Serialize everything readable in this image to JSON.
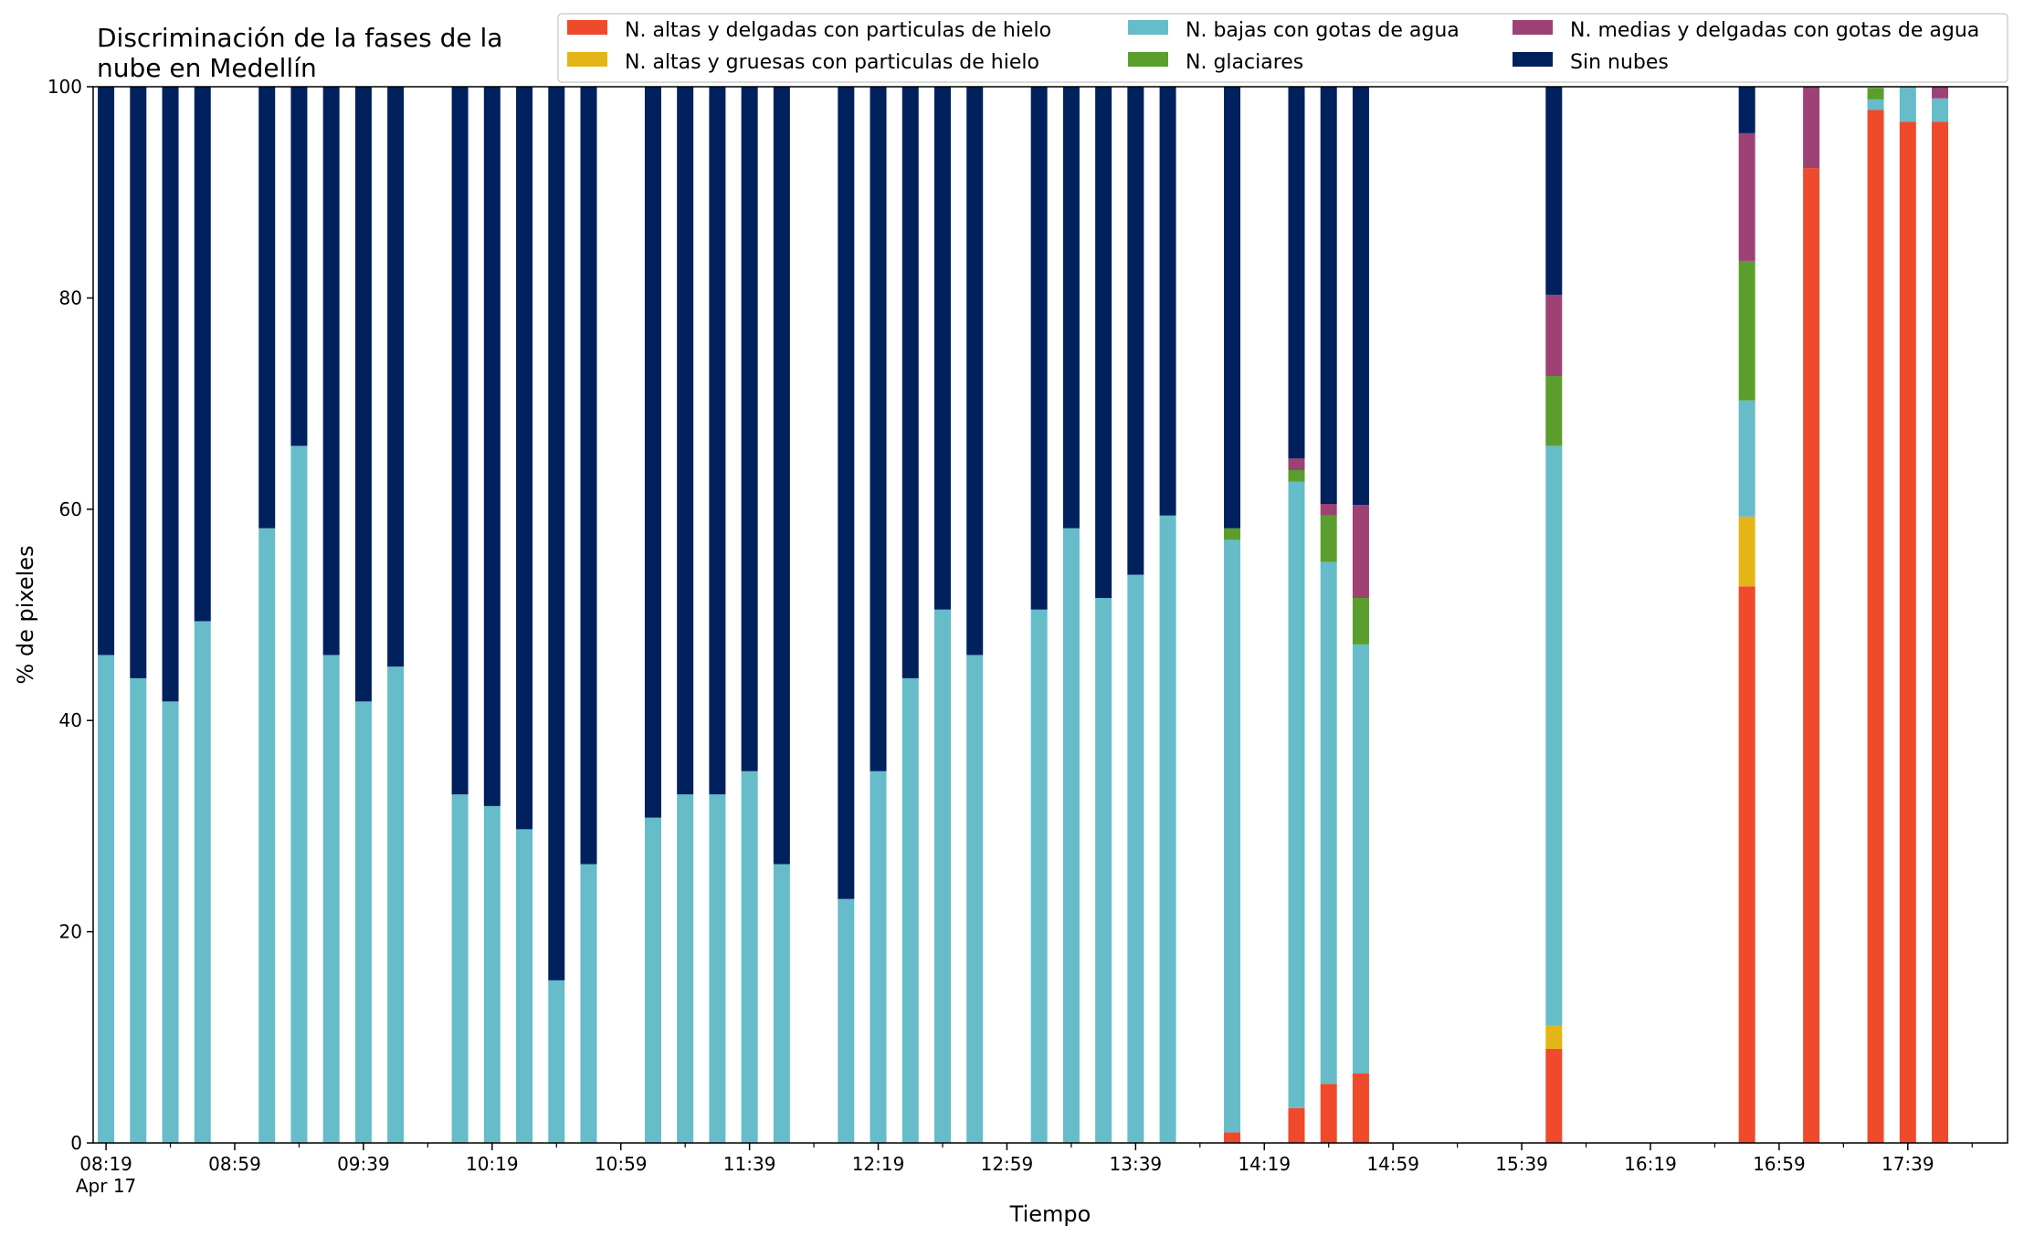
{
  "chart_data": {
    "type": "bar",
    "stacked": true,
    "title": "Discriminación de la fases de la\nnube en Medellín",
    "xlabel": "Tiempo",
    "ylabel": "% de pixeles",
    "ylim": [
      0,
      100
    ],
    "yticks": [
      0,
      20,
      40,
      60,
      80,
      100
    ],
    "grid": false,
    "legend_position": "top-right",
    "x_range": [
      "08:15",
      "18:10"
    ],
    "x_tick_labels": [
      "08:19",
      "08:59",
      "09:39",
      "10:19",
      "10:59",
      "11:39",
      "12:19",
      "12:59",
      "13:39",
      "14:19",
      "14:59",
      "15:39",
      "16:19",
      "16:59",
      "17:39"
    ],
    "x_date_label": "Apr 17",
    "x_minor_step_minutes": 20,
    "x": [
      "08:19",
      "08:29",
      "08:39",
      "08:49",
      "09:09",
      "09:19",
      "09:29",
      "09:39",
      "09:49",
      "10:09",
      "10:19",
      "10:29",
      "10:39",
      "10:49",
      "11:09",
      "11:19",
      "11:29",
      "11:39",
      "11:49",
      "12:09",
      "12:19",
      "12:29",
      "12:39",
      "12:49",
      "13:09",
      "13:19",
      "13:29",
      "13:39",
      "13:49",
      "14:09",
      "14:29",
      "14:39",
      "14:49",
      "15:49",
      "16:49",
      "17:09",
      "17:29",
      "17:39",
      "17:49"
    ],
    "series": [
      {
        "name": "N. altas y delgadas con particulas de hielo",
        "color": "#ef4a2b",
        "values": [
          0,
          0,
          0,
          0,
          0,
          0,
          0,
          0,
          0,
          0,
          0,
          0,
          0,
          0,
          0,
          0,
          0,
          0,
          0,
          0,
          0,
          0,
          0,
          0,
          0,
          0,
          0,
          0,
          0,
          1,
          3.3,
          5.6,
          6.6,
          8.9,
          52.7,
          92.3,
          97.8,
          96.7,
          96.7
        ]
      },
      {
        "name": "N. altas y gruesas con particulas de hielo",
        "color": "#e5b517",
        "values": [
          0,
          0,
          0,
          0,
          0,
          0,
          0,
          0,
          0,
          0,
          0,
          0,
          0,
          0,
          0,
          0,
          0,
          0,
          0,
          0,
          0,
          0,
          0,
          0,
          0,
          0,
          0,
          0,
          0,
          0,
          0,
          0,
          0,
          2.2,
          6.6,
          0,
          0,
          0,
          0
        ]
      },
      {
        "name": "N. bajas con gotas de agua",
        "color": "#66bcc9",
        "values": [
          46.2,
          44,
          41.8,
          49.4,
          58.2,
          66,
          46.2,
          41.8,
          45.1,
          33,
          31.9,
          29.7,
          15.4,
          26.4,
          30.8,
          33,
          33,
          35.2,
          26.4,
          23.1,
          35.2,
          44,
          50.5,
          46.2,
          50.5,
          58.2,
          51.6,
          53.8,
          59.4,
          56.1,
          59.3,
          49.4,
          40.6,
          54.9,
          11,
          0,
          1,
          3.3,
          2.2
        ]
      },
      {
        "name": "N. glaciares",
        "color": "#5b9e2d",
        "values": [
          0,
          0,
          0,
          0,
          0,
          0,
          0,
          0,
          0,
          0,
          0,
          0,
          0,
          0,
          0,
          0,
          0,
          0,
          0,
          0,
          0,
          0,
          0,
          0,
          0,
          0,
          0,
          0,
          0,
          1.1,
          1.1,
          4.4,
          4.4,
          6.6,
          13.2,
          0,
          1.1,
          0,
          0
        ]
      },
      {
        "name": "N. medias y delgadas con gotas de agua",
        "color": "#9e4174",
        "values": [
          0,
          0,
          0,
          0,
          0,
          0,
          0,
          0,
          0,
          0,
          0,
          0,
          0,
          0,
          0,
          0,
          0,
          0,
          0,
          0,
          0,
          0,
          0,
          0,
          0,
          0,
          0,
          0,
          0,
          0,
          1.1,
          1.1,
          8.8,
          7.7,
          12.1,
          7.7,
          0,
          0,
          1.1
        ]
      },
      {
        "name": "Sin nubes",
        "color": "#00205e",
        "values": [
          53.8,
          56,
          58.2,
          50.6,
          41.8,
          34,
          53.8,
          58.2,
          54.9,
          67,
          68.1,
          70.3,
          84.6,
          73.6,
          69.2,
          67,
          67,
          64.8,
          73.6,
          76.9,
          64.8,
          56,
          49.5,
          53.8,
          49.5,
          41.8,
          48.4,
          46.2,
          40.6,
          41.8,
          35.2,
          39.5,
          39.6,
          19.7,
          4.4,
          0,
          0,
          0,
          0
        ]
      }
    ]
  }
}
